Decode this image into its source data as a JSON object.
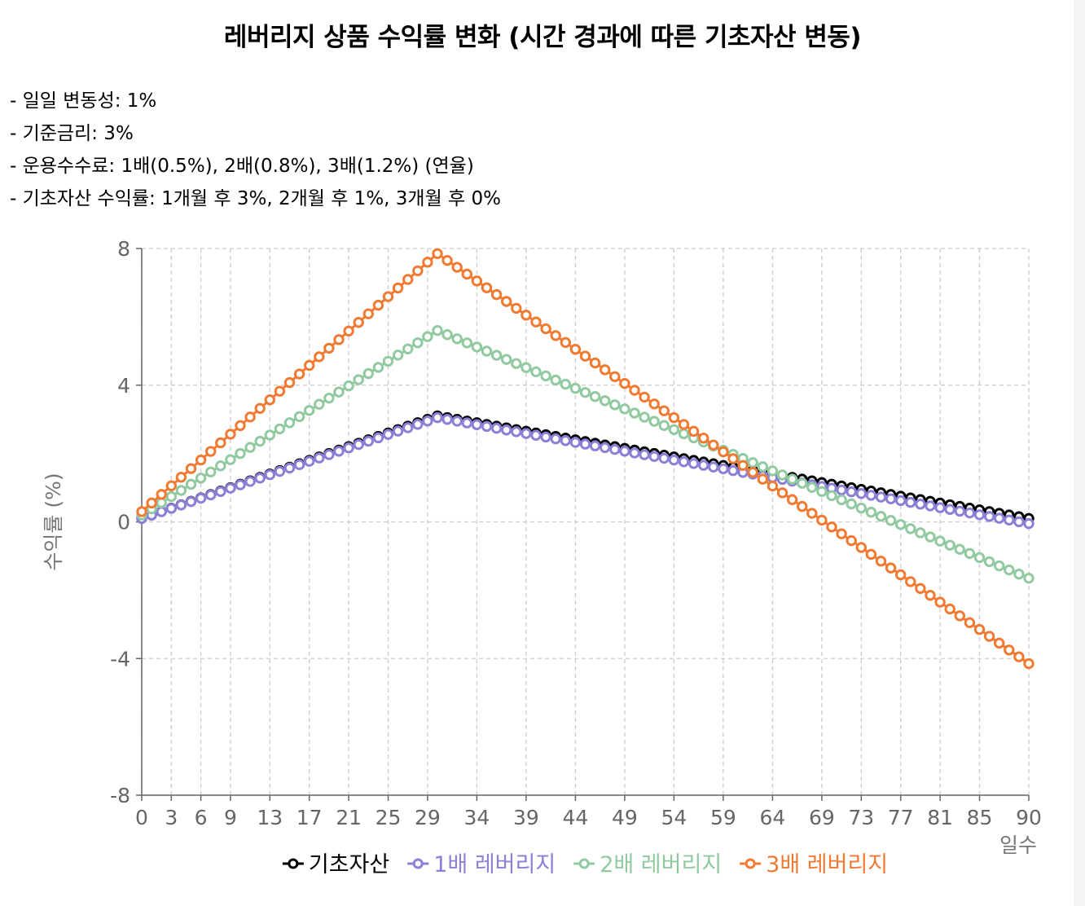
{
  "title": "레버리지 상품 수익률 변화 (시간 경과에 따른 기초자산 변동)",
  "notes": [
    "- 일일 변동성: 1%",
    "- 기준금리: 3%",
    "- 운용수수료: 1배(0.5%), 2배(0.8%), 3배(1.2%) (연율)",
    "- 기초자산 수익률: 1개월 후 3%, 2개월 후 1%, 3개월 후 0%"
  ],
  "chart_data": {
    "type": "line",
    "xlabel": "일수",
    "ylabel": "수익률 (%)",
    "xlim": [
      0,
      90
    ],
    "ylim": [
      -8,
      8
    ],
    "x_ticks": [
      0,
      3,
      6,
      9,
      13,
      17,
      21,
      25,
      29,
      34,
      39,
      44,
      49,
      54,
      59,
      64,
      69,
      73,
      77,
      81,
      85,
      90
    ],
    "y_ticks": [
      -8,
      -4,
      0,
      4,
      8
    ],
    "y_tick_labels": [
      "-8",
      "-4",
      "0",
      "4",
      "8"
    ],
    "grid": true,
    "legend_position": "bottom-center",
    "x": {
      "start": 0,
      "end": 90,
      "step": 1
    },
    "series": [
      {
        "name": "기초자산",
        "color": "#000000",
        "breakpoints": [
          [
            0,
            0.1
          ],
          [
            30,
            3.1
          ],
          [
            90,
            0.1
          ]
        ]
      },
      {
        "name": "1배 레버리지",
        "color": "#8a80d6",
        "breakpoints": [
          [
            0,
            0.1
          ],
          [
            30,
            3.05
          ],
          [
            90,
            -0.05
          ]
        ]
      },
      {
        "name": "2배 레버리지",
        "color": "#91c9a0",
        "breakpoints": [
          [
            0,
            0.2
          ],
          [
            30,
            5.6
          ],
          [
            90,
            -1.65
          ]
        ]
      },
      {
        "name": "3배 레버리지",
        "color": "#f07a32",
        "breakpoints": [
          [
            0,
            0.3
          ],
          [
            30,
            7.85
          ],
          [
            90,
            -4.15
          ]
        ]
      }
    ]
  }
}
